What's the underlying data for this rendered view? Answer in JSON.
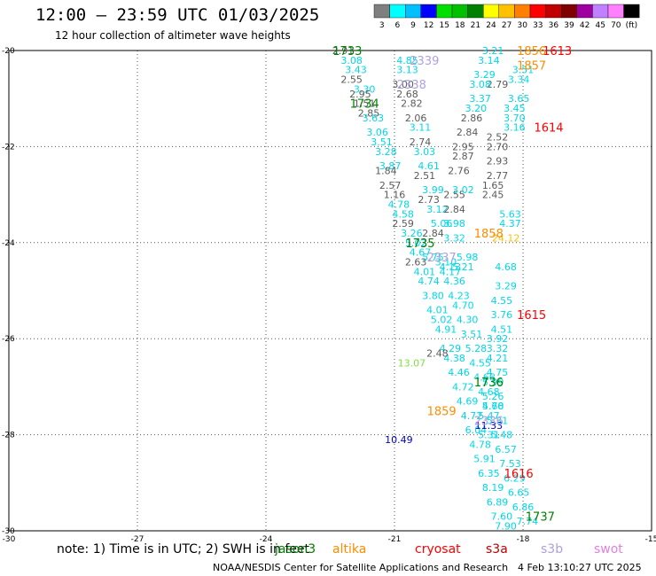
{
  "header": {
    "title": "12:00 – 23:59 UTC 01/03/2025",
    "subtitle": "12 hour collection of altimeter wave heights"
  },
  "color_scale": {
    "unit": "(ft)",
    "bins": [
      {
        "label": "3",
        "color": "#7f7f7f"
      },
      {
        "label": "6",
        "color": "#00ffff"
      },
      {
        "label": "9",
        "color": "#00bfff"
      },
      {
        "label": "12",
        "color": "#0000ff"
      },
      {
        "label": "15",
        "color": "#00e000"
      },
      {
        "label": "18",
        "color": "#00c000"
      },
      {
        "label": "21",
        "color": "#008000"
      },
      {
        "label": "24",
        "color": "#ffff00"
      },
      {
        "label": "27",
        "color": "#ffc000"
      },
      {
        "label": "30",
        "color": "#ff8000"
      },
      {
        "label": "33",
        "color": "#ff0000"
      },
      {
        "label": "36",
        "color": "#c00000"
      },
      {
        "label": "39",
        "color": "#800000"
      },
      {
        "label": "42",
        "color": "#a000a0"
      },
      {
        "label": "45",
        "color": "#c080ff"
      },
      {
        "label": "70",
        "color": "#ff80ff"
      },
      {
        "label": "",
        "color": "#000000"
      }
    ]
  },
  "footer": {
    "note_prefix": "note:  1) Time is in UTC; 2) SWH is in feet",
    "credit": "NOAA/NESDIS Center for Satellite Applications and Research",
    "timestamp": "4 Feb 13:10:27 UTC 2025",
    "missions": [
      {
        "name": "jason3",
        "color": "#008000"
      },
      {
        "name": "altika",
        "color": "#ff8c00"
      },
      {
        "name": "cryosat",
        "color": "#ff0000"
      },
      {
        "name": "s3a",
        "color": "#c00000"
      },
      {
        "name": "s3b",
        "color": "#b0a0e0"
      },
      {
        "name": "swot",
        "color": "#e080e0"
      }
    ]
  },
  "chart_data": {
    "type": "scatter",
    "xlim": [
      -30,
      -15
    ],
    "ylim": [
      -30,
      -20
    ],
    "x_ticks": [
      "-30",
      "-27",
      "-24",
      "-21",
      "-18",
      "-15"
    ],
    "y_ticks": [
      "-20",
      "-22",
      "-24",
      "-26",
      "-28",
      "-30"
    ],
    "grid": true,
    "track_time_labels": [
      {
        "text": "1733",
        "x": -22.1,
        "y": -20.0,
        "color": "#008000"
      },
      {
        "text": "1734",
        "x": -21.7,
        "y": -21.1,
        "color": "#008000"
      },
      {
        "text": "1735",
        "x": -20.4,
        "y": -24.0,
        "color": "#008000"
      },
      {
        "text": "1736",
        "x": -18.8,
        "y": -26.9,
        "color": "#008000"
      },
      {
        "text": "1737",
        "x": -17.6,
        "y": -29.7,
        "color": "#008000"
      },
      {
        "text": "1613",
        "x": -17.2,
        "y": -20.0,
        "color": "#ff0000"
      },
      {
        "text": "1614",
        "x": -17.4,
        "y": -21.6,
        "color": "#ff0000"
      },
      {
        "text": "1615",
        "x": -17.8,
        "y": -25.5,
        "color": "#ff0000"
      },
      {
        "text": "1616",
        "x": -18.1,
        "y": -28.8,
        "color": "#ff0000"
      },
      {
        "text": "1856",
        "x": -17.8,
        "y": -20.0,
        "color": "#ff8c00"
      },
      {
        "text": "1857",
        "x": -17.8,
        "y": -20.3,
        "color": "#ff8c00"
      },
      {
        "text": "1858",
        "x": -18.8,
        "y": -23.8,
        "color": "#ff8c00"
      },
      {
        "text": "1859",
        "x": -19.9,
        "y": -27.5,
        "color": "#ff8c00"
      },
      {
        "text": "2339",
        "x": -20.3,
        "y": -20.2,
        "color": "#b0a0e0"
      },
      {
        "text": "2338",
        "x": -20.6,
        "y": -20.7,
        "color": "#b0a0e0"
      },
      {
        "text": "2337",
        "x": -19.9,
        "y": -24.3,
        "color": "#b0a0e0"
      },
      {
        "text": "2336",
        "x": -18.8,
        "y": -27.7,
        "color": "#b0a0e0"
      }
    ],
    "series": [
      {
        "name": "jason3",
        "color": "#00d8e8",
        "points": [
          {
            "x": -22.0,
            "y": -20.2,
            "v": "3.08"
          },
          {
            "x": -21.9,
            "y": -20.4,
            "v": "3.43"
          },
          {
            "x": -21.7,
            "y": -20.8,
            "v": "3.30"
          },
          {
            "x": -21.5,
            "y": -21.4,
            "v": "3.63"
          },
          {
            "x": -21.4,
            "y": -21.7,
            "v": "3.06"
          },
          {
            "x": -21.3,
            "y": -21.9,
            "v": "3.51"
          },
          {
            "x": -21.2,
            "y": -22.1,
            "v": "3.28"
          },
          {
            "x": -21.1,
            "y": -22.4,
            "v": "3.87"
          },
          {
            "x": -20.9,
            "y": -23.2,
            "v": "4.78"
          },
          {
            "x": -20.8,
            "y": -23.4,
            "v": "4.58"
          },
          {
            "x": -20.6,
            "y": -23.8,
            "v": "3.26"
          },
          {
            "x": -20.5,
            "y": -24.0,
            "v": "5.02"
          },
          {
            "x": -20.4,
            "y": -24.2,
            "v": "4.67"
          },
          {
            "x": -20.3,
            "y": -24.6,
            "v": "4.01"
          },
          {
            "x": -20.2,
            "y": -24.8,
            "v": "4.74"
          },
          {
            "x": -20.1,
            "y": -25.1,
            "v": "3.80"
          },
          {
            "x": -20.0,
            "y": -25.4,
            "v": "4.01"
          },
          {
            "x": -19.9,
            "y": -25.6,
            "v": "5.02"
          },
          {
            "x": -19.8,
            "y": -25.8,
            "v": "4.91"
          },
          {
            "x": -19.7,
            "y": -26.2,
            "v": "4.29"
          },
          {
            "x": -19.6,
            "y": -26.4,
            "v": "4.38"
          },
          {
            "x": -19.5,
            "y": -26.7,
            "v": "4.46"
          },
          {
            "x": -19.4,
            "y": -27.0,
            "v": "4.72"
          },
          {
            "x": -19.3,
            "y": -27.3,
            "v": "4.69"
          },
          {
            "x": -19.2,
            "y": -27.6,
            "v": "4.72"
          },
          {
            "x": -19.1,
            "y": -27.9,
            "v": "6.04"
          },
          {
            "x": -19.0,
            "y": -28.2,
            "v": "4.78"
          },
          {
            "x": -18.9,
            "y": -28.5,
            "v": "5.91"
          },
          {
            "x": -18.8,
            "y": -28.8,
            "v": "6.35"
          },
          {
            "x": -18.7,
            "y": -29.1,
            "v": "8.19"
          },
          {
            "x": -18.6,
            "y": -29.4,
            "v": "6.89"
          },
          {
            "x": -18.5,
            "y": -29.7,
            "v": "7.60"
          },
          {
            "x": -18.4,
            "y": -29.9,
            "v": "7.90"
          }
        ]
      },
      {
        "name": "s3a",
        "color": "#5a5a5a",
        "points": [
          {
            "x": -22.2,
            "y": -20.0,
            "v": "2.91"
          },
          {
            "x": -22.0,
            "y": -20.6,
            "v": "2.55"
          },
          {
            "x": -21.8,
            "y": -20.9,
            "v": "2.95"
          },
          {
            "x": -21.7,
            "y": -21.1,
            "v": "1.51"
          },
          {
            "x": -21.6,
            "y": -21.3,
            "v": "2.85"
          },
          {
            "x": -21.2,
            "y": -22.5,
            "v": "1.84"
          },
          {
            "x": -21.1,
            "y": -22.8,
            "v": "2.57"
          },
          {
            "x": -21.0,
            "y": -23.0,
            "v": "1.16"
          },
          {
            "x": -20.8,
            "y": -23.6,
            "v": "2.59"
          },
          {
            "x": -20.5,
            "y": -24.4,
            "v": "2.63"
          },
          {
            "x": -20.0,
            "y": -26.3,
            "v": "2.48"
          },
          {
            "x": -20.8,
            "y": -20.7,
            "v": "3.00"
          },
          {
            "x": -20.7,
            "y": -20.9,
            "v": "2.68"
          },
          {
            "x": -20.6,
            "y": -21.1,
            "v": "2.82"
          },
          {
            "x": -20.5,
            "y": -21.4,
            "v": "2.06"
          },
          {
            "x": -20.4,
            "y": -21.9,
            "v": "2.74"
          },
          {
            "x": -20.3,
            "y": -22.6,
            "v": "2.51"
          },
          {
            "x": -20.2,
            "y": -23.1,
            "v": "2.73"
          },
          {
            "x": -20.1,
            "y": -23.8,
            "v": "2.84"
          }
        ]
      },
      {
        "name": "s3b",
        "color": "#00d8e8",
        "points": [
          {
            "x": -20.7,
            "y": -20.2,
            "v": "4.85"
          },
          {
            "x": -20.7,
            "y": -20.4,
            "v": "3.13"
          },
          {
            "x": -20.4,
            "y": -21.6,
            "v": "3.11"
          },
          {
            "x": -20.3,
            "y": -22.1,
            "v": "3.03"
          },
          {
            "x": -20.2,
            "y": -22.4,
            "v": "4.61"
          },
          {
            "x": -20.1,
            "y": -22.9,
            "v": "3.99"
          },
          {
            "x": -20.0,
            "y": -23.3,
            "v": "3.12"
          },
          {
            "x": -19.9,
            "y": -23.6,
            "v": "5.06"
          },
          {
            "x": -19.8,
            "y": -24.4,
            "v": "3.10"
          },
          {
            "x": -19.7,
            "y": -24.6,
            "v": "4.17"
          },
          {
            "x": -19.6,
            "y": -24.8,
            "v": "4.36"
          },
          {
            "x": -19.5,
            "y": -25.1,
            "v": "4.23"
          },
          {
            "x": -19.4,
            "y": -25.3,
            "v": "4.70"
          },
          {
            "x": -19.3,
            "y": -25.6,
            "v": "4.30"
          },
          {
            "x": -19.2,
            "y": -25.9,
            "v": "3.51"
          },
          {
            "x": -19.1,
            "y": -26.2,
            "v": "5.28"
          },
          {
            "x": -19.0,
            "y": -26.5,
            "v": "4.55"
          },
          {
            "x": -18.9,
            "y": -26.8,
            "v": "4.66"
          },
          {
            "x": -18.8,
            "y": -27.1,
            "v": "4.68"
          },
          {
            "x": -18.7,
            "y": -27.4,
            "v": "5.68"
          },
          {
            "x": -18.6,
            "y": -27.7,
            "v": "5.31"
          },
          {
            "x": -18.5,
            "y": -28.0,
            "v": "5.48"
          },
          {
            "x": -18.4,
            "y": -28.3,
            "v": "6.57"
          },
          {
            "x": -18.3,
            "y": -28.6,
            "v": "7.53"
          },
          {
            "x": -18.2,
            "y": -28.9,
            "v": "6.29"
          },
          {
            "x": -18.1,
            "y": -29.2,
            "v": "6.65"
          },
          {
            "x": -18.0,
            "y": -29.5,
            "v": "6.86"
          },
          {
            "x": -17.9,
            "y": -29.8,
            "v": "7.74"
          }
        ]
      },
      {
        "name": "cryosat",
        "color": "#5a5a5a",
        "points": [
          {
            "x": -18.6,
            "y": -20.7,
            "v": "2.79"
          },
          {
            "x": -18.6,
            "y": -21.8,
            "v": "2.52"
          },
          {
            "x": -18.6,
            "y": -22.0,
            "v": "2.70"
          },
          {
            "x": -18.6,
            "y": -22.3,
            "v": "2.93"
          },
          {
            "x": -18.6,
            "y": -22.6,
            "v": "2.77"
          },
          {
            "x": -18.7,
            "y": -22.8,
            "v": "1.65"
          },
          {
            "x": -18.7,
            "y": -23.0,
            "v": "2.45"
          },
          {
            "x": -19.2,
            "y": -21.4,
            "v": "2.86"
          },
          {
            "x": -19.3,
            "y": -21.7,
            "v": "2.84"
          },
          {
            "x": -19.4,
            "y": -22.0,
            "v": "2.95"
          },
          {
            "x": -19.4,
            "y": -22.2,
            "v": "2.87"
          },
          {
            "x": -19.5,
            "y": -22.5,
            "v": "2.76"
          },
          {
            "x": -19.6,
            "y": -23.0,
            "v": "2.55"
          },
          {
            "x": -19.6,
            "y": -23.3,
            "v": "2.84"
          }
        ]
      },
      {
        "name": "altika",
        "color": "#00d8e8",
        "points": [
          {
            "x": -18.7,
            "y": -20.0,
            "v": "3.21"
          },
          {
            "x": -18.8,
            "y": -20.2,
            "v": "3.14"
          },
          {
            "x": -18.9,
            "y": -20.5,
            "v": "3.29"
          },
          {
            "x": -19.0,
            "y": -20.7,
            "v": "3.08"
          },
          {
            "x": -19.0,
            "y": -21.0,
            "v": "3.37"
          },
          {
            "x": -19.1,
            "y": -21.2,
            "v": "3.20"
          },
          {
            "x": -19.4,
            "y": -22.9,
            "v": "3.02"
          },
          {
            "x": -19.6,
            "y": -23.6,
            "v": "3.98"
          },
          {
            "x": -19.6,
            "y": -23.9,
            "v": "3.32"
          },
          {
            "x": -19.7,
            "y": -24.5,
            "v": "4.13"
          },
          {
            "x": -18.0,
            "y": -20.4,
            "v": "3.51"
          },
          {
            "x": -18.1,
            "y": -20.6,
            "v": "3.34"
          },
          {
            "x": -18.1,
            "y": -21.0,
            "v": "3.65"
          },
          {
            "x": -18.2,
            "y": -21.2,
            "v": "3.45"
          },
          {
            "x": -18.2,
            "y": -21.4,
            "v": "3.70"
          },
          {
            "x": -18.2,
            "y": -21.6,
            "v": "3.16"
          },
          {
            "x": -18.3,
            "y": -23.4,
            "v": "5.63"
          },
          {
            "x": -18.3,
            "y": -23.6,
            "v": "4.37"
          },
          {
            "x": -18.4,
            "y": -24.5,
            "v": "4.68"
          },
          {
            "x": -18.4,
            "y": -24.9,
            "v": "3.29"
          },
          {
            "x": -18.5,
            "y": -25.2,
            "v": "4.55"
          },
          {
            "x": -18.5,
            "y": -25.5,
            "v": "3.76"
          },
          {
            "x": -18.5,
            "y": -25.8,
            "v": "4.51"
          },
          {
            "x": -18.6,
            "y": -26.0,
            "v": "3.92"
          },
          {
            "x": -18.6,
            "y": -26.2,
            "v": "3.32"
          },
          {
            "x": -18.6,
            "y": -26.4,
            "v": "4.21"
          },
          {
            "x": -18.6,
            "y": -26.7,
            "v": "4.75"
          },
          {
            "x": -18.7,
            "y": -26.9,
            "v": "5.99"
          },
          {
            "x": -18.7,
            "y": -27.2,
            "v": "5.26"
          },
          {
            "x": -18.7,
            "y": -27.4,
            "v": "4.70"
          },
          {
            "x": -18.8,
            "y": -27.6,
            "v": "5.47"
          },
          {
            "x": -18.8,
            "y": -28.0,
            "v": "5.31"
          }
        ]
      },
      {
        "name": "swot",
        "color": "#00d8e8",
        "points": [
          {
            "x": -19.3,
            "y": -24.3,
            "v": "5.98"
          },
          {
            "x": -19.4,
            "y": -24.5,
            "v": "5.21"
          },
          {
            "x": -20.1,
            "y": -24.3,
            "v": "5.75"
          }
        ]
      },
      {
        "name": "highlights",
        "color": "#000000",
        "points": [
          {
            "x": -20.6,
            "y": -26.5,
            "v": "13.07",
            "color": "#80e040"
          },
          {
            "x": -18.8,
            "y": -27.8,
            "v": "11.33",
            "color": "#0000c8"
          },
          {
            "x": -20.9,
            "y": -28.1,
            "v": "10.49",
            "color": "#0000c8"
          },
          {
            "x": -18.4,
            "y": -23.9,
            "v": "24.12",
            "color": "#ffc000"
          }
        ]
      }
    ]
  }
}
